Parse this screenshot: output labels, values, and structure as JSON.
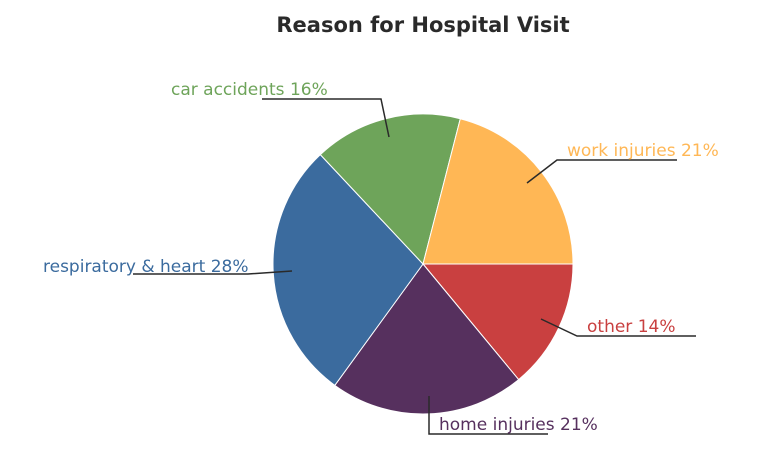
{
  "chart_data": {
    "type": "pie",
    "title": "Reason for Hospital Visit",
    "slices": [
      {
        "label": "other",
        "value": 14,
        "text": "other 14%",
        "color": "#c94040"
      },
      {
        "label": "home injuries",
        "value": 21,
        "text": "home injuries 21%",
        "color": "#56305e"
      },
      {
        "label": "respiratory & heart",
        "value": 28,
        "text": "respiratory & heart 28%",
        "color": "#3b6b9e"
      },
      {
        "label": "car accidents",
        "value": 16,
        "text": "car accidents 16%",
        "color": "#6ea45a"
      },
      {
        "label": "work injuries",
        "value": 21,
        "text": "work injuries 21%",
        "color": "#ffb755"
      }
    ]
  }
}
